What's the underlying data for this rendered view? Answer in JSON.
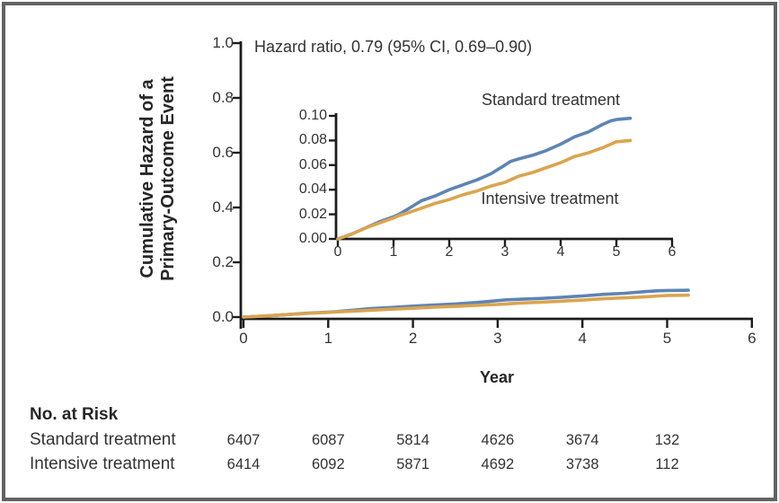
{
  "annotation": {
    "hazard_ratio": "Hazard ratio, 0.79 (95% CI, 0.69–0.90)"
  },
  "main_plot": {
    "ylabel_line1": "Cumulative Hazard of a",
    "ylabel_line2": "Primary-Outcome Event",
    "xlabel": "Year",
    "yticks": [
      "1.0",
      "0.8",
      "0.6",
      "0.4",
      "0.2",
      "0.0"
    ],
    "xticks": [
      "0",
      "1",
      "2",
      "3",
      "4",
      "5",
      "6"
    ]
  },
  "inset_plot": {
    "standard_label": "Standard treatment",
    "intensive_label": "Intensive treatment",
    "yticks": [
      "0.10",
      "0.08",
      "0.06",
      "0.04",
      "0.02",
      "0.00"
    ],
    "xticks": [
      "0",
      "1",
      "2",
      "3",
      "4",
      "5",
      "6"
    ]
  },
  "risk_table": {
    "heading": "No. at Risk",
    "rows": [
      {
        "label": "Standard treatment",
        "values": [
          "6407",
          "6087",
          "5814",
          "4626",
          "3674",
          "132"
        ]
      },
      {
        "label": "Intensive treatment",
        "values": [
          "6414",
          "6092",
          "5871",
          "4692",
          "3738",
          "112"
        ]
      }
    ]
  },
  "colors": {
    "standard": "#5f84b5",
    "intensive": "#dba44f",
    "axis": "#1c1c1c",
    "border": "#626262"
  },
  "chart_data": {
    "type": "line",
    "title": "",
    "annotation": "Hazard ratio, 0.79 (95% CI, 0.69–0.90)",
    "xlabel": "Year",
    "ylabel": "Cumulative Hazard of a Primary-Outcome Event",
    "xlim": [
      0,
      6
    ],
    "main_ylim": [
      0,
      1.0
    ],
    "main_yticks": [
      1.0,
      0.8,
      0.6,
      0.4,
      0.2,
      0.0
    ],
    "inset_ylim": [
      0,
      0.1
    ],
    "inset_yticks": [
      0.1,
      0.08,
      0.06,
      0.04,
      0.02,
      0.0
    ],
    "x_ticks": [
      0,
      1,
      2,
      3,
      4,
      5,
      6
    ],
    "grid": false,
    "series": [
      {
        "name": "Standard treatment",
        "color": "#5f84b5",
        "x": [
          0,
          0.25,
          0.5,
          0.75,
          1,
          1.1,
          1.25,
          1.5,
          1.75,
          2,
          2.25,
          2.5,
          2.75,
          3,
          3.1,
          3.25,
          3.5,
          3.75,
          4,
          4.25,
          4.5,
          4.75,
          4.9,
          5,
          5.25
        ],
        "y": [
          0,
          0.004,
          0.009,
          0.014,
          0.018,
          0.02,
          0.024,
          0.031,
          0.035,
          0.04,
          0.044,
          0.048,
          0.053,
          0.06,
          0.063,
          0.065,
          0.068,
          0.072,
          0.077,
          0.083,
          0.087,
          0.093,
          0.096,
          0.097,
          0.098
        ]
      },
      {
        "name": "Intensive treatment",
        "color": "#dba44f",
        "x": [
          0,
          0.25,
          0.5,
          0.75,
          1,
          1.1,
          1.25,
          1.5,
          1.75,
          2,
          2.25,
          2.5,
          2.75,
          3,
          3.1,
          3.25,
          3.5,
          3.75,
          4,
          4.25,
          4.5,
          4.75,
          4.9,
          5,
          5.25
        ],
        "y": [
          0,
          0.004,
          0.009,
          0.013,
          0.017,
          0.019,
          0.021,
          0.025,
          0.029,
          0.032,
          0.036,
          0.039,
          0.043,
          0.046,
          0.048,
          0.051,
          0.054,
          0.058,
          0.062,
          0.067,
          0.07,
          0.074,
          0.077,
          0.079,
          0.08
        ]
      }
    ],
    "no_at_risk": {
      "times": [
        0,
        1,
        2,
        3,
        4,
        5
      ],
      "standard_treatment": [
        6407,
        6087,
        5814,
        4626,
        3674,
        132
      ],
      "intensive_treatment": [
        6414,
        6092,
        5871,
        4692,
        3738,
        112
      ]
    }
  }
}
